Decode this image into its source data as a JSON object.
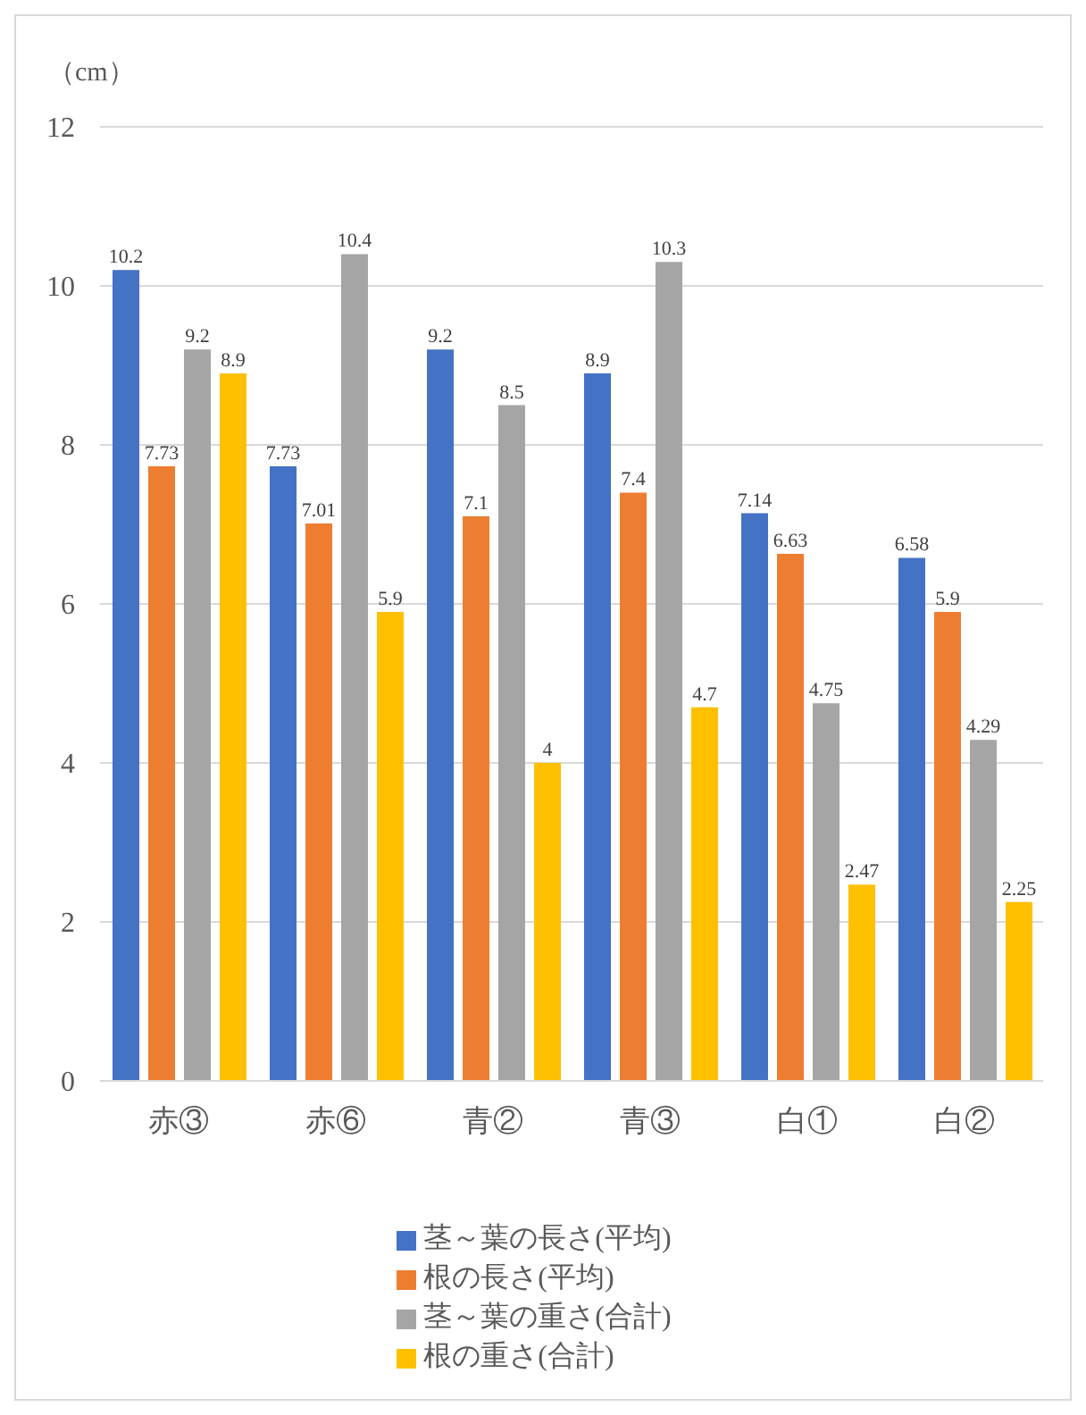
{
  "chart_data": {
    "type": "bar",
    "ylabel": "（cm）",
    "categories": [
      "赤③",
      "赤⑥",
      "青②",
      "青③",
      "白①",
      "白②"
    ],
    "series": [
      {
        "name": "茎～葉の長さ(平均)",
        "color": "#4472c4",
        "values": [
          10.2,
          7.73,
          9.2,
          8.9,
          7.14,
          6.58
        ]
      },
      {
        "name": "根の長さ(平均)",
        "color": "#ed7d31",
        "values": [
          7.73,
          7.01,
          7.1,
          7.4,
          6.63,
          5.9
        ]
      },
      {
        "name": "茎～葉の重さ(合計)",
        "color": "#a5a5a5",
        "values": [
          9.2,
          10.4,
          8.5,
          10.3,
          4.75,
          4.29
        ]
      },
      {
        "name": "根の重さ(合計)",
        "color": "#ffc000",
        "values": [
          8.9,
          5.9,
          4,
          4.7,
          2.47,
          2.25
        ]
      }
    ],
    "ylim": [
      0,
      12
    ],
    "yticks": [
      0,
      2,
      4,
      6,
      8,
      10,
      12
    ],
    "grid": "y",
    "legend": "bottom",
    "data_labels": true
  }
}
